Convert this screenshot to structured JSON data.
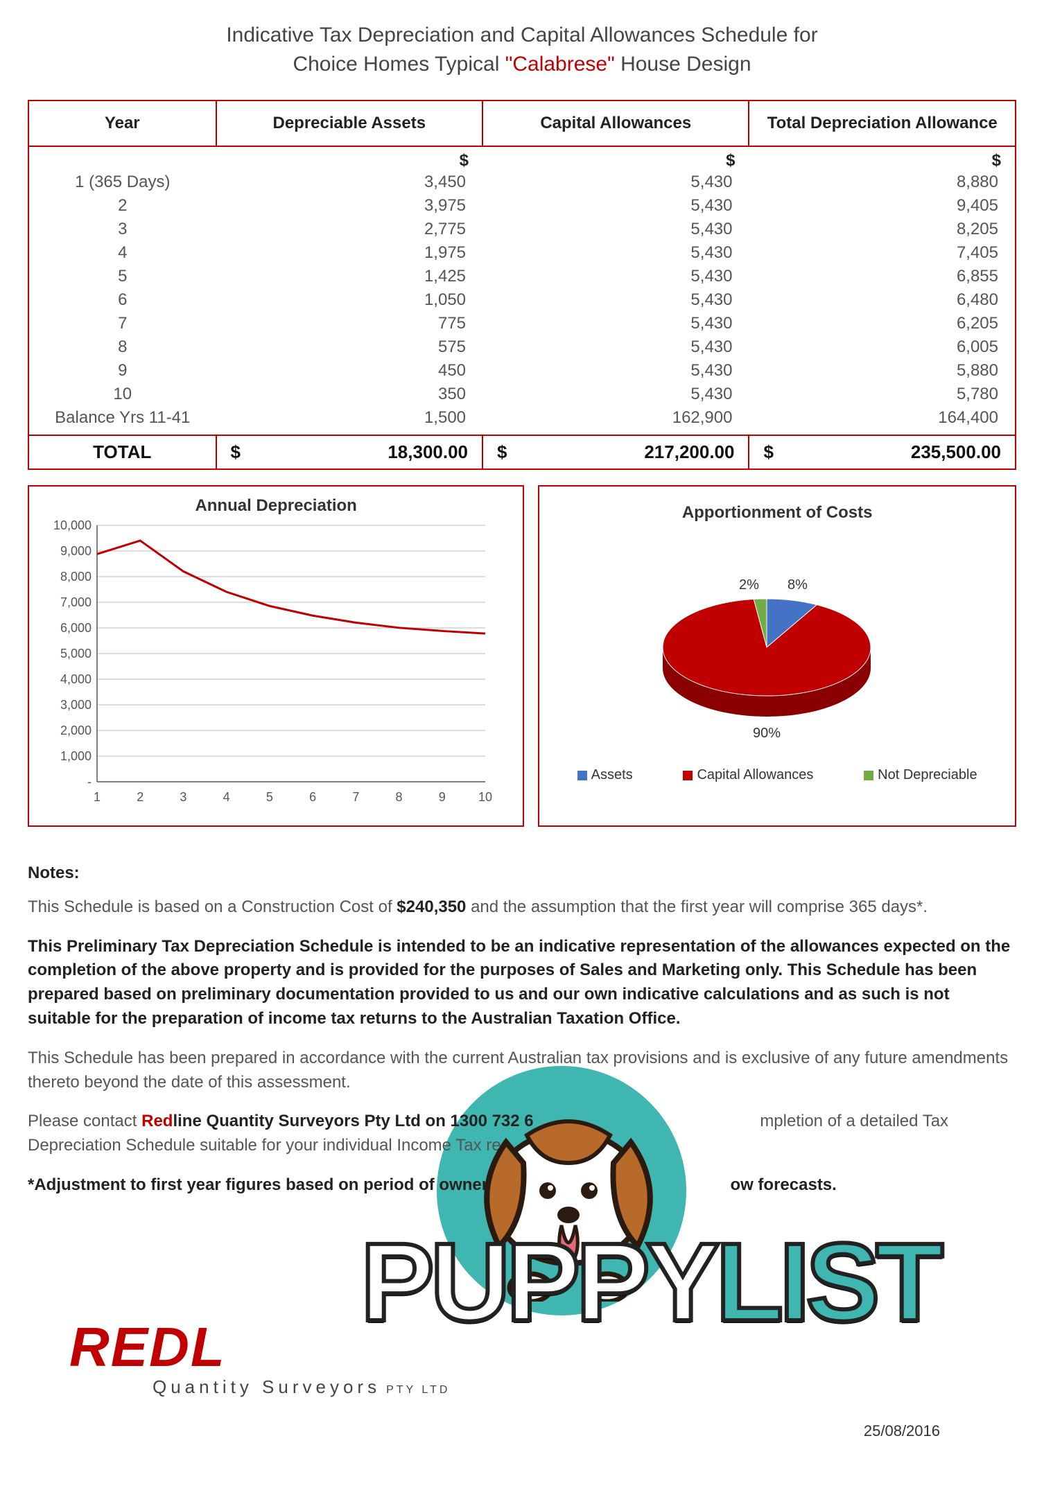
{
  "title": {
    "line1": "Indicative Tax Depreciation and Capital Allowances Schedule for",
    "line2_prefix": "Choice Homes Typical ",
    "line2_quoted": "\"Calabrese\"",
    "line2_suffix": " House Design"
  },
  "table": {
    "headers": [
      "Year",
      "Depreciable Assets",
      "Capital Allowances",
      "Total Depreciation Allowance"
    ],
    "currency_symbol": "$",
    "rows": [
      {
        "year": "1 (365 Days)",
        "depreciable": "3,450",
        "capital": "5,430",
        "total": "8,880"
      },
      {
        "year": "2",
        "depreciable": "3,975",
        "capital": "5,430",
        "total": "9,405"
      },
      {
        "year": "3",
        "depreciable": "2,775",
        "capital": "5,430",
        "total": "8,205"
      },
      {
        "year": "4",
        "depreciable": "1,975",
        "capital": "5,430",
        "total": "7,405"
      },
      {
        "year": "5",
        "depreciable": "1,425",
        "capital": "5,430",
        "total": "6,855"
      },
      {
        "year": "6",
        "depreciable": "1,050",
        "capital": "5,430",
        "total": "6,480"
      },
      {
        "year": "7",
        "depreciable": "775",
        "capital": "5,430",
        "total": "6,205"
      },
      {
        "year": "8",
        "depreciable": "575",
        "capital": "5,430",
        "total": "6,005"
      },
      {
        "year": "9",
        "depreciable": "450",
        "capital": "5,430",
        "total": "5,880"
      },
      {
        "year": "10",
        "depreciable": "350",
        "capital": "5,430",
        "total": "5,780"
      },
      {
        "year": "Balance Yrs 11-41",
        "depreciable": "1,500",
        "capital": "162,900",
        "total": "164,400"
      }
    ],
    "total_label": "TOTAL",
    "totals": {
      "depreciable": "18,300.00",
      "capital": "217,200.00",
      "total": "235,500.00"
    }
  },
  "line_chart": {
    "title": "Annual Depreciation",
    "type": "line",
    "ylim": [
      0,
      10000
    ],
    "ytick_step": 1000,
    "ytick_labels": [
      "-",
      "1,000",
      "2,000",
      "3,000",
      "4,000",
      "5,000",
      "6,000",
      "7,000",
      "8,000",
      "9,000",
      "10,000"
    ],
    "xlim": [
      1,
      10
    ],
    "xticks": [
      1,
      2,
      3,
      4,
      5,
      6,
      7,
      8,
      9,
      10
    ],
    "series_color": "#c00000",
    "line_width": 3,
    "grid_color": "#bbbbbb",
    "axis_color": "#555555",
    "label_fontsize": 18,
    "title_fontsize": 24,
    "background_color": "#ffffff",
    "data": [
      {
        "x": 1,
        "y": 8880
      },
      {
        "x": 2,
        "y": 9405
      },
      {
        "x": 3,
        "y": 8205
      },
      {
        "x": 4,
        "y": 7405
      },
      {
        "x": 5,
        "y": 6855
      },
      {
        "x": 6,
        "y": 6480
      },
      {
        "x": 7,
        "y": 6205
      },
      {
        "x": 8,
        "y": 6005
      },
      {
        "x": 9,
        "y": 5880
      },
      {
        "x": 10,
        "y": 5780
      }
    ]
  },
  "pie_chart": {
    "title": "Apportionment of Costs",
    "type": "pie_3d",
    "title_fontsize": 24,
    "label_fontsize": 20,
    "background_color": "#ffffff",
    "slices": [
      {
        "name": "Assets",
        "value": 8,
        "label": "8%",
        "color": "#4472c4"
      },
      {
        "name": "Capital Allowances",
        "value": 90,
        "label": "90%",
        "color": "#c00000"
      },
      {
        "name": "Not Depreciable",
        "value": 2,
        "label": "2%",
        "color": "#70ad47"
      }
    ],
    "legend": [
      {
        "label": "Assets",
        "color": "#4472c4"
      },
      {
        "label": "Capital Allowances",
        "color": "#c00000"
      },
      {
        "label": "Not Depreciable",
        "color": "#70ad47"
      }
    ]
  },
  "notes": {
    "header": "Notes:",
    "p1_prefix": "This Schedule is based on a Construction Cost of ",
    "p1_bold": "$240,350",
    "p1_suffix": " and the assumption that the first year will comprise 365 days*.",
    "p2": "This Preliminary Tax Depreciation Schedule is intended to be an indicative representation of the allowances expected on the completion of the above property and is provided for the purposes of Sales and Marketing only.  This Schedule has been prepared based on preliminary documentation provided to us and our own indicative calculations and as such is not suitable for the preparation of income tax returns to the Australian Taxation Office.",
    "p3": "This Schedule has been prepared in accordance with the current Australian tax provisions and is exclusive of any future amendments thereto beyond the date of this assessment.",
    "p4_prefix": "Please contact ",
    "p4_red": "Red",
    "p4_bold_rest": "line Quantity Surveyors Pty Ltd on 1300 732 6",
    "p4_suffix_visible_a": "mpletion of a detailed Tax Depreciation Schedule suitable for your individual Income Tax re",
    "p5_prefix": "*Adjustment to first year figures based on period of ownership",
    "p5_suffix": "ow forecasts."
  },
  "footer": {
    "brand": "REDL",
    "subline": "Quantity Surveyors",
    "pty": "PTY LTD",
    "date": "25/08/2016"
  },
  "overlay": {
    "word1": "PUPPY",
    "word2": "LIST",
    "circle_color": "#3fb7b0",
    "text_fill": "#ffffff",
    "text_stroke": "#1a1a1a",
    "list_fill": "#3fb7b0"
  }
}
